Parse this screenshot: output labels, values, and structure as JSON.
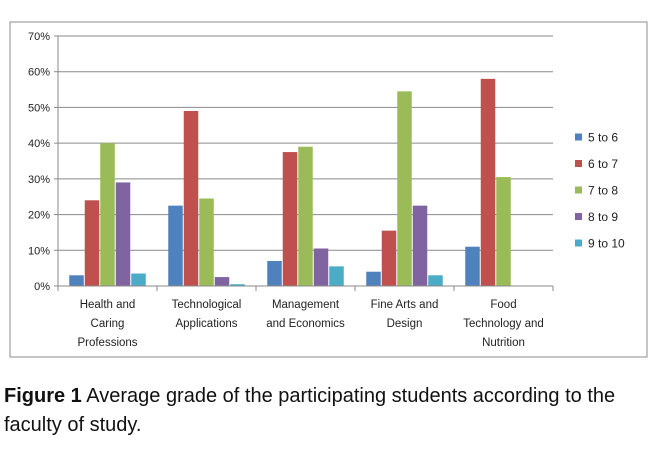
{
  "caption": {
    "label": "Figure 1",
    "text": " Average grade of the participating students according to the faculty of study."
  },
  "chart_data": {
    "type": "bar",
    "title": "",
    "xlabel": "",
    "ylabel": "",
    "ylim": [
      0,
      70
    ],
    "yticks": [
      "0%",
      "10%",
      "20%",
      "30%",
      "40%",
      "50%",
      "60%",
      "70%"
    ],
    "grid": true,
    "legend_position": "right",
    "categories": [
      [
        "Health and",
        "Caring",
        "Professions"
      ],
      [
        "Technological",
        "Applications"
      ],
      [
        "Management",
        "and Economics"
      ],
      [
        "Fine Arts and",
        "Design"
      ],
      [
        "Food",
        "Technology and",
        "Nutrition"
      ]
    ],
    "series": [
      {
        "name": "5 to 6",
        "color": "#4F81BD",
        "values": [
          3,
          22.5,
          7,
          4,
          11
        ]
      },
      {
        "name": "6 to 7",
        "color": "#C0504D",
        "values": [
          24,
          49,
          37.5,
          15.5,
          58
        ]
      },
      {
        "name": "7 to 8",
        "color": "#9BBB59",
        "values": [
          40,
          24.5,
          39,
          54.5,
          30.5
        ]
      },
      {
        "name": "8 to 9",
        "color": "#8064A2",
        "values": [
          29,
          2.5,
          10.5,
          22.5,
          0
        ]
      },
      {
        "name": "9 to 10",
        "color": "#4BACC6",
        "values": [
          3.5,
          0.5,
          5.5,
          3,
          0
        ]
      }
    ]
  }
}
